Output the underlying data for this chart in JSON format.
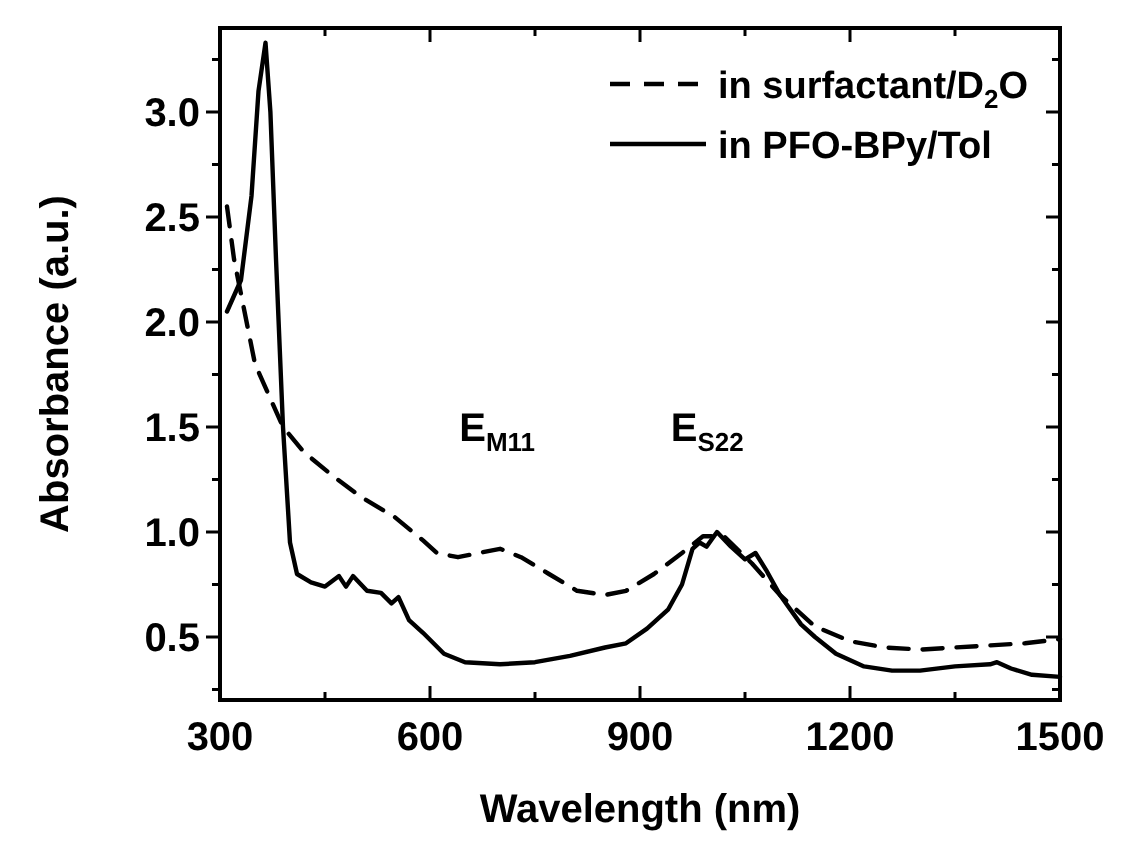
{
  "chart_data": {
    "type": "line",
    "xlabel": "Wavelength (nm)",
    "ylabel": "Absorbance (a.u.)",
    "xlim": [
      300,
      1500
    ],
    "ylim": [
      0.2,
      3.4
    ],
    "xticks": [
      300,
      {
        "value": 450,
        "label": null
      },
      600,
      {
        "value": 750,
        "label": null
      },
      900,
      {
        "value": 1050,
        "label": null
      },
      1200,
      {
        "value": 1350,
        "label": null
      },
      1500
    ],
    "yticks": [
      {
        "value": 0.25,
        "label": null
      },
      0.5,
      {
        "value": 0.75,
        "label": null
      },
      {
        "value": 1,
        "label": "1.0"
      },
      {
        "value": 1.25,
        "label": null
      },
      1.5,
      {
        "value": 1.75,
        "label": null
      },
      {
        "value": 2,
        "label": "2.0"
      },
      {
        "value": 2.25,
        "label": null
      },
      2.5,
      {
        "value": 2.75,
        "label": null
      },
      {
        "value": 3,
        "label": "3.0"
      },
      {
        "value": 3.25,
        "label": null
      }
    ],
    "grid": false,
    "legend": "top right",
    "marker": "none",
    "annotations": [
      "E$_{M11}$",
      "E$_{S22}$"
    ],
    "series": [
      {
        "name": "in surfactant/D$_{2}$O",
        "color": "#000000",
        "line_style": "dashed",
        "x": [
          310,
          320,
          335,
          350,
          370,
          390,
          420,
          460,
          500,
          550,
          590,
          610,
          640,
          670,
          700,
          730,
          770,
          810,
          850,
          880,
          920,
          960,
          990,
          1020,
          1060,
          1100,
          1150,
          1200,
          1250,
          1300,
          1350,
          1400,
          1450,
          1500
        ],
        "values": [
          2.55,
          2.3,
          2.05,
          1.8,
          1.65,
          1.5,
          1.38,
          1.27,
          1.17,
          1.07,
          0.96,
          0.9,
          0.88,
          0.9,
          0.92,
          0.88,
          0.8,
          0.72,
          0.7,
          0.72,
          0.8,
          0.9,
          0.98,
          0.98,
          0.85,
          0.7,
          0.55,
          0.48,
          0.45,
          0.44,
          0.45,
          0.46,
          0.47,
          0.49
        ]
      },
      {
        "name": "in PFO-BPy/Tol",
        "color": "#000000",
        "line_style": "solid",
        "x": [
          310,
          330,
          345,
          355,
          365,
          372,
          380,
          390,
          400,
          410,
          430,
          450,
          470,
          480,
          490,
          510,
          530,
          545,
          555,
          570,
          590,
          620,
          650,
          700,
          750,
          800,
          850,
          880,
          910,
          940,
          960,
          975,
          985,
          995,
          1010,
          1030,
          1050,
          1065,
          1080,
          1100,
          1130,
          1150,
          1180,
          1220,
          1260,
          1300,
          1350,
          1400,
          1410,
          1430,
          1460,
          1500
        ],
        "values": [
          2.05,
          2.2,
          2.6,
          3.1,
          3.33,
          3.0,
          2.3,
          1.5,
          0.95,
          0.8,
          0.76,
          0.74,
          0.79,
          0.74,
          0.79,
          0.72,
          0.71,
          0.66,
          0.69,
          0.58,
          0.52,
          0.42,
          0.38,
          0.37,
          0.38,
          0.41,
          0.45,
          0.47,
          0.54,
          0.63,
          0.75,
          0.92,
          0.95,
          0.93,
          1.0,
          0.93,
          0.87,
          0.9,
          0.82,
          0.7,
          0.56,
          0.5,
          0.42,
          0.36,
          0.34,
          0.34,
          0.36,
          0.37,
          0.38,
          0.35,
          0.32,
          0.31
        ]
      }
    ]
  }
}
